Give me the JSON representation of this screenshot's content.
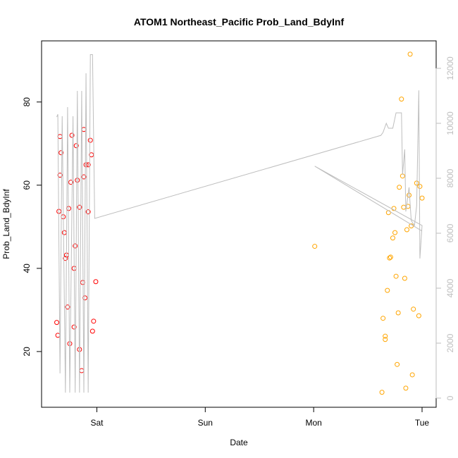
{
  "chart_data": {
    "type": "scatter",
    "title": "ATOM1 Northeast_Pacific Prob_Land_BdyInf",
    "x_label": "Date",
    "y_label": "Prob_Land_BdyInf",
    "xlim": [
      -0.51,
      3.13
    ],
    "ylim": [
      6.6,
      94.7
    ],
    "y2lim": [
      -333,
      13000
    ],
    "xticks": [
      {
        "value": 0,
        "label": "Sat"
      },
      {
        "value": 1,
        "label": "Sun"
      },
      {
        "value": 2,
        "label": "Mon"
      },
      {
        "value": 3,
        "label": "Tue"
      }
    ],
    "yticks": [
      20,
      40,
      60,
      80
    ],
    "y2ticks": [
      0,
      2000,
      4000,
      6000,
      8000,
      10000,
      12000
    ],
    "y2color": "#bebebe",
    "series": [
      {
        "color": "#ff0000",
        "x": [
          -0.37,
          -0.36,
          -0.35,
          -0.34,
          -0.34,
          -0.33,
          -0.31,
          -0.3,
          -0.28,
          -0.29,
          -0.27,
          -0.26,
          -0.25,
          -0.24,
          -0.23,
          -0.21,
          -0.21,
          -0.2,
          -0.19,
          -0.18,
          -0.16,
          -0.16,
          -0.14,
          -0.13,
          -0.12,
          -0.12,
          -0.11,
          -0.1,
          -0.08,
          -0.08,
          -0.06,
          -0.05,
          -0.04,
          -0.03,
          -0.01
        ],
        "values": [
          27.0,
          23.9,
          53.7,
          71.7,
          62.4,
          67.8,
          52.4,
          48.6,
          43.2,
          42.4,
          30.7,
          54.4,
          21.9,
          60.7,
          72.0,
          40.0,
          25.9,
          45.4,
          69.5,
          61.2,
          20.5,
          54.7,
          15.4,
          36.6,
          62.0,
          73.4,
          32.9,
          64.9,
          64.9,
          53.6,
          70.8,
          67.3,
          24.9,
          27.3,
          36.8
        ]
      },
      {
        "color": "#ffa500",
        "x": [
          2.01,
          2.63,
          2.64,
          2.66,
          2.66,
          2.68,
          2.69,
          2.7,
          2.71,
          2.73,
          2.74,
          2.75,
          2.76,
          2.77,
          2.78,
          2.79,
          2.81,
          2.82,
          2.83,
          2.84,
          2.85,
          2.86,
          2.87,
          2.88,
          2.89,
          2.9,
          2.91,
          2.92,
          2.95,
          2.97,
          2.98,
          3.0
        ],
        "values": [
          45.3,
          10.2,
          28.0,
          22.9,
          23.7,
          34.7,
          53.4,
          42.5,
          42.7,
          47.3,
          54.4,
          48.6,
          38.1,
          16.9,
          29.3,
          59.5,
          80.7,
          62.2,
          54.7,
          37.6,
          11.2,
          49.3,
          54.9,
          57.6,
          91.5,
          50.2,
          14.4,
          30.2,
          60.5,
          28.6,
          59.7,
          56.9
        ]
      },
      {
        "type": "line",
        "axis": "y2",
        "color": "#bebebe",
        "x": [
          -0.37,
          -0.36,
          -0.34,
          -0.32,
          -0.29,
          -0.27,
          -0.25,
          -0.22,
          -0.2,
          -0.18,
          -0.16,
          -0.14,
          -0.12,
          -0.1,
          -0.08,
          -0.06,
          -0.04,
          -0.02,
          2.62,
          2.64,
          2.67,
          2.69,
          2.73,
          2.76,
          2.81,
          2.82,
          2.84,
          2.85,
          2.88,
          2.9,
          2.93,
          2.95,
          2.97,
          2.98,
          3.0,
          2.01,
          3.0
        ],
        "values": [
          10230,
          10330,
          900,
          10260,
          200,
          10590,
          200,
          10260,
          200,
          11180,
          200,
          11180,
          200,
          11820,
          200,
          12500,
          12500,
          6540,
          9560,
          9670,
          10000,
          9820,
          9820,
          10380,
          10380,
          8130,
          9050,
          6790,
          7670,
          6460,
          6280,
          7000,
          11200,
          5080,
          6280,
          8440,
          6080
        ]
      }
    ]
  }
}
